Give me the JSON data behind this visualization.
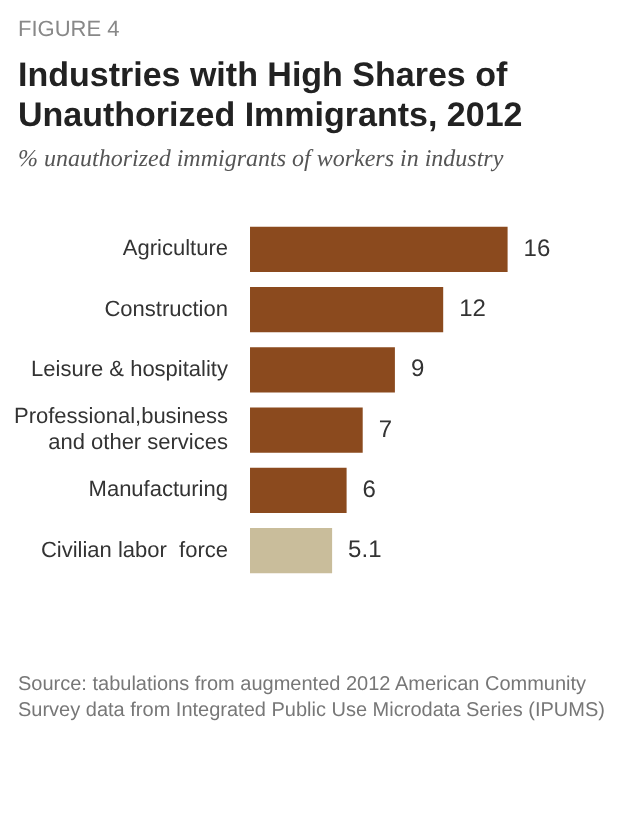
{
  "chart_data": {
    "type": "bar",
    "orientation": "horizontal",
    "title": "Industries with High Shares of Unauthorized Immigrants, 2012",
    "subtitle": "% unauthorized immigrants of workers in industry",
    "categories": [
      "Agriculture",
      "Construction",
      "Leisure & hospitality",
      "Professional,business and other services",
      "Manufacturing",
      "Civilian labor  force"
    ],
    "values": [
      16,
      12,
      9,
      7,
      6,
      5.1
    ],
    "colors": [
      "#8b4a1e",
      "#8b4a1e",
      "#8b4a1e",
      "#8b4a1e",
      "#8b4a1e",
      "#c9bd9b"
    ],
    "data_labels": true,
    "legend": false,
    "annotations": [
      "FIGURE 4",
      "Source: tabulations from augmented 2012 American Community Survey data from Integrated Public Use Microdata Series (IPUMS)"
    ]
  }
}
